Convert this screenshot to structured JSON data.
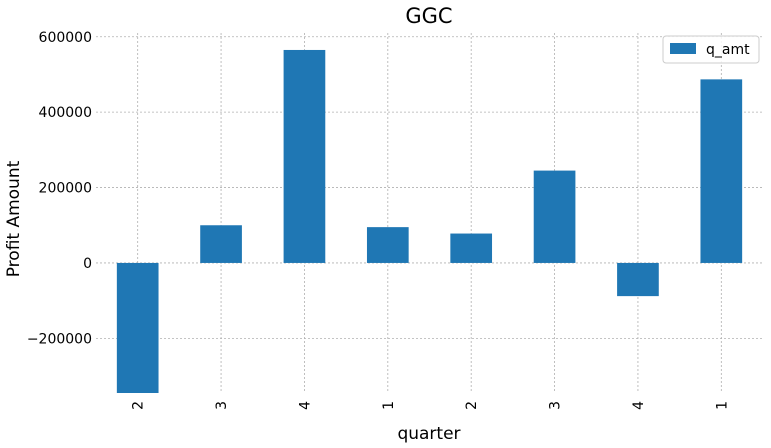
{
  "chart_data": {
    "type": "bar",
    "title": "GGC",
    "xlabel": "quarter",
    "ylabel": "Profit Amount",
    "categories": [
      "2",
      "3",
      "4",
      "1",
      "2",
      "3",
      "4",
      "1"
    ],
    "series": [
      {
        "name": "q_amt",
        "color": "#1f77b4",
        "values": [
          -345000,
          100000,
          565000,
          95000,
          78000,
          245000,
          -88000,
          487000
        ]
      }
    ],
    "ylim": [
      -345000,
      610000
    ],
    "yticks": [
      -200000,
      0,
      200000,
      400000,
      600000
    ],
    "ytick_labels": [
      "−200000",
      "0",
      "200000",
      "400000",
      "600000"
    ],
    "grid": true,
    "legend_position": "top-right",
    "x_tick_rotation": 90
  }
}
